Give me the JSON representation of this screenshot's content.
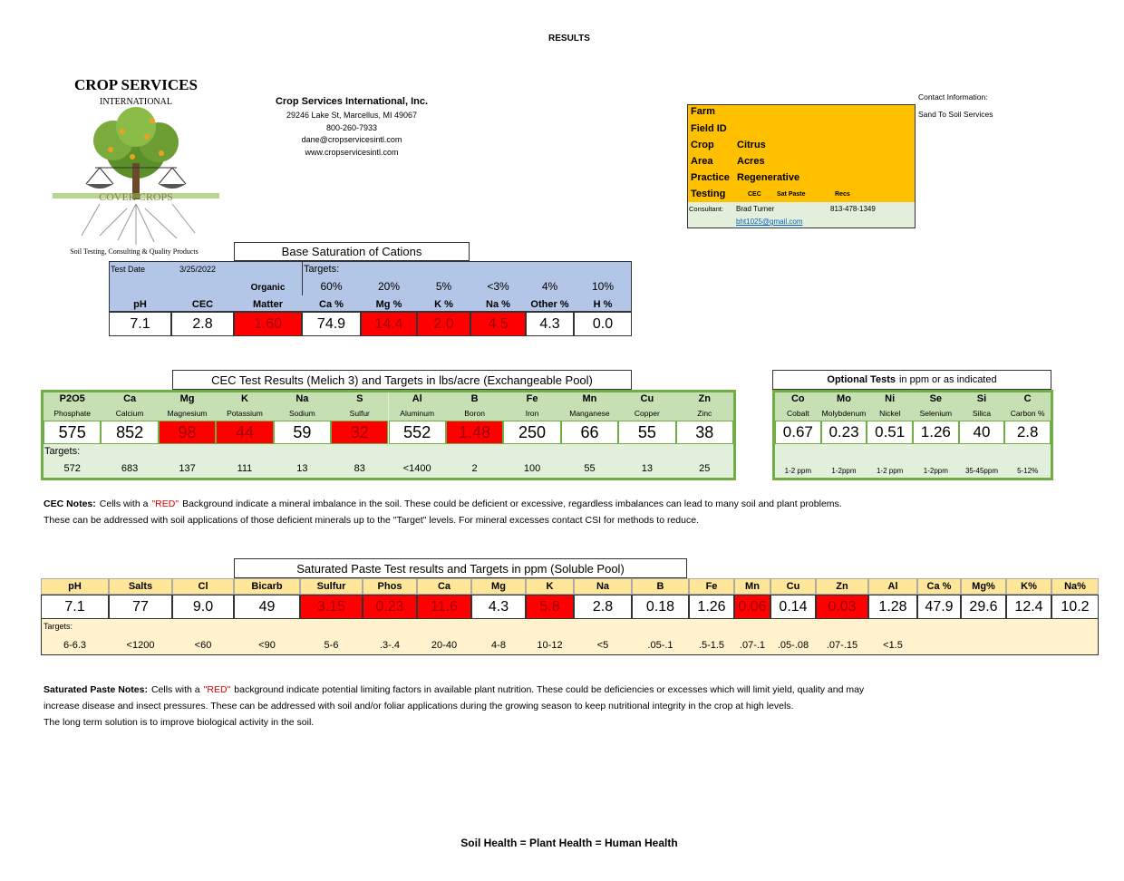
{
  "header": {
    "title": "RESULTS"
  },
  "logo": {
    "name": "CROP SERVICES",
    "subtitle": "INTERNATIONAL",
    "banner": "COVER CROPS",
    "tagline": "Soil Testing, Consulting & Quality Products"
  },
  "company": {
    "name": "Crop Services International, Inc.",
    "lines": [
      "29246 Lake St, Marcellus, MI 49067",
      "800-260-7933",
      "dane@cropservicesintl.com",
      "www.cropservicesintl.com"
    ]
  },
  "contact": {
    "label": "Contact Information:",
    "value": "Sand To Soil Services"
  },
  "farm_info": {
    "rows": [
      {
        "label": "Farm"
      },
      {
        "label": "Field ID"
      },
      {
        "label": "Crop",
        "value": "Citrus"
      },
      {
        "label": "Area",
        "value": "Acres"
      },
      {
        "label": "Practice",
        "value": "Regenerative"
      },
      {
        "label": "Testing",
        "options": [
          "CEC",
          "Sat Paste",
          "Recs"
        ]
      }
    ],
    "consultant": {
      "label": "Consultant:",
      "name": "Brad Turner",
      "phone": "813-478-1349",
      "email": "bht1025@gmail.com"
    }
  },
  "base_saturation": {
    "title": "Base Saturation of Cations",
    "test_date_label": "Test Date",
    "test_date": "3/25/2022",
    "targets_label": "Targets:",
    "columns": [
      {
        "header": "pH",
        "value": "7.1"
      },
      {
        "header": "CEC",
        "value": "2.8"
      },
      {
        "pre": "Organic",
        "header": "Matter",
        "value": "1.60",
        "flag": true
      },
      {
        "target": "60%",
        "header": "Ca %",
        "value": "74.9"
      },
      {
        "target": "20%",
        "header": "Mg %",
        "value": "14.4",
        "flag": true
      },
      {
        "target": "5%",
        "header": "K %",
        "value": "2.0",
        "flag": true
      },
      {
        "target": "<3%",
        "header": "Na %",
        "value": "4.5",
        "flag": true
      },
      {
        "target": "4%",
        "header": "Other %",
        "value": "4.3"
      },
      {
        "target": "10%",
        "header": "H %",
        "value": "0.0"
      }
    ]
  },
  "cec": {
    "title": "CEC Test Results (Melich 3) and Targets in lbs/acre (Exchangeable Pool)",
    "targets_label": "Targets:",
    "columns": [
      {
        "symbol": "P2O5",
        "name": "Phosphate",
        "value": "575",
        "target": "572"
      },
      {
        "symbol": "Ca",
        "name": "Calcium",
        "value": "852",
        "target": "683"
      },
      {
        "symbol": "Mg",
        "name": "Magnesium",
        "value": "98",
        "target": "137",
        "flag": true
      },
      {
        "symbol": "K",
        "name": "Potassium",
        "value": "44",
        "target": "111",
        "flag": true
      },
      {
        "symbol": "Na",
        "name": "Sodium",
        "value": "59",
        "target": "13"
      },
      {
        "symbol": "S",
        "name": "Sulfur",
        "value": "32",
        "target": "83",
        "flag": true
      },
      {
        "symbol": "Al",
        "name": "Aluminum",
        "value": "552",
        "target": "<1400"
      },
      {
        "symbol": "B",
        "name": "Boron",
        "value": "1.48",
        "target": "2",
        "flag": true
      },
      {
        "symbol": "Fe",
        "name": "Iron",
        "value": "250",
        "target": "100"
      },
      {
        "symbol": "Mn",
        "name": "Manganese",
        "value": "66",
        "target": "55"
      },
      {
        "symbol": "Cu",
        "name": "Copper",
        "value": "55",
        "target": "13"
      },
      {
        "symbol": "Zn",
        "name": "Zinc",
        "value": "38",
        "target": "25"
      }
    ]
  },
  "optional_tests": {
    "title": [
      "Optional Tests",
      "in ppm or as indicated"
    ],
    "columns": [
      {
        "symbol": "Co",
        "name": "Cobalt",
        "value": "0.67",
        "target": "1-2 ppm"
      },
      {
        "symbol": "Mo",
        "name": "Molybdenum",
        "value": "0.23",
        "target": "1-2ppm"
      },
      {
        "symbol": "Ni",
        "name": "Nickel",
        "value": "0.51",
        "target": "1-2 ppm"
      },
      {
        "symbol": "Se",
        "name": "Selenium",
        "value": "1.26",
        "target": "1-2ppm"
      },
      {
        "symbol": "Si",
        "name": "Silica",
        "value": "40",
        "target": "35-45ppm"
      },
      {
        "symbol": "C",
        "name": "Carbon %",
        "value": "2.8",
        "target": "5-12%"
      }
    ]
  },
  "cec_notes": {
    "label": "CEC Notes:",
    "line1": {
      "before": "Cells with a",
      "highlight": "\"RED\"",
      "after": "Background indicate a mineral imbalance in the soil. These could be deficient or excessive, regardless imbalances can lead to many soil and plant problems."
    },
    "line2": "These can be addressed with soil applications of those deficient minerals up to the \"Target\" levels. For mineral excesses contact CSI for methods to reduce."
  },
  "sat_paste": {
    "title": "Saturated Paste Test results and Targets in ppm (Soluble Pool)",
    "targets_label": "Targets:",
    "columns": [
      {
        "name": "pH",
        "value": "7.1",
        "target": "6-6.3"
      },
      {
        "name": "Salts",
        "value": "77",
        "target": "<1200"
      },
      {
        "name": "Cl",
        "value": "9.0",
        "target": "<60"
      },
      {
        "name": "Bicarb",
        "value": "49",
        "target": "<90"
      },
      {
        "name": "Sulfur",
        "value": "3.15",
        "target": "5-6",
        "flag": true
      },
      {
        "name": "Phos",
        "value": "0.23",
        "target": ".3-.4",
        "flag": true
      },
      {
        "name": "Ca",
        "value": "11.6",
        "target": "20-40",
        "flag": true
      },
      {
        "name": "Mg",
        "value": "4.3",
        "target": "4-8"
      },
      {
        "name": "K",
        "value": "5.8",
        "target": "10-12",
        "flag": true
      },
      {
        "name": "Na",
        "value": "2.8",
        "target": "<5"
      },
      {
        "name": "B",
        "value": "0.18",
        "target": ".05-.1"
      },
      {
        "name": "Fe",
        "value": "1.26",
        "target": ".5-1.5"
      },
      {
        "name": "Mn",
        "value": "0.06",
        "target": ".07-.1",
        "flag": true
      },
      {
        "name": "Cu",
        "value": "0.14",
        "target": ".05-.08"
      },
      {
        "name": "Zn",
        "value": "0.03",
        "target": ".07-.15",
        "flag": true
      },
      {
        "name": "Al",
        "value": "1.28",
        "target": "<1.5"
      },
      {
        "name": "Ca %",
        "value": "47.9"
      },
      {
        "name": "Mg%",
        "value": "29.6"
      },
      {
        "name": "K%",
        "value": "12.4"
      },
      {
        "name": "Na%",
        "value": "10.2"
      }
    ]
  },
  "sat_notes": {
    "label": "Saturated Paste Notes:",
    "line1": {
      "before": "Cells with a",
      "highlight": "\"RED\"",
      "after": "background indicate potential limiting factors in available plant nutrition. These could be deficiencies or excesses which will limit yield, quality and may"
    },
    "lines": [
      "increase disease and insect pressures. These can be addressed with soil and/or foliar applications during the growing season to keep nutritional integrity in the crop at high levels.",
      "The long term solution is to improve biological activity in the soil."
    ]
  },
  "footer": "Soil Health = Plant Health = Human Health"
}
